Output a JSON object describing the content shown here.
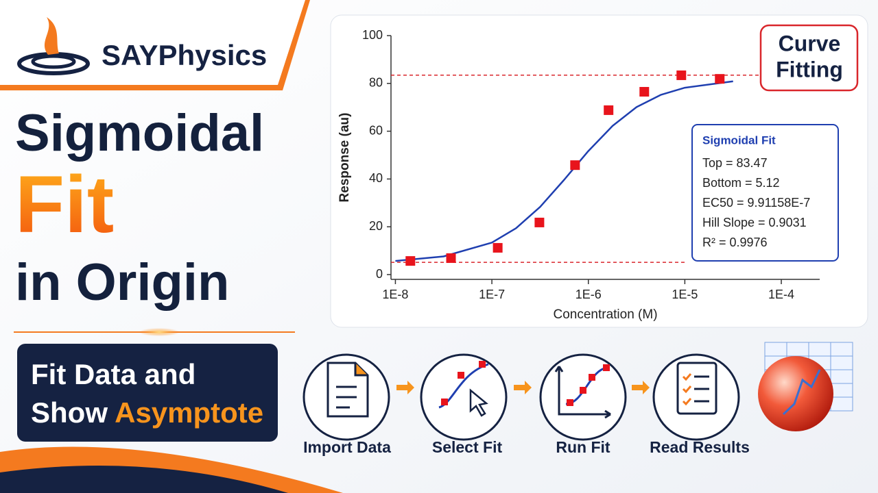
{
  "brand": "SAYPhysics",
  "headline": [
    "Sigmoidal",
    "Fit",
    "in Origin"
  ],
  "subtitle": {
    "line1": "Fit Data and",
    "line2": "Show ",
    "highlight": "Asymptote"
  },
  "badge": [
    "Curve",
    "Fitting"
  ],
  "steps": [
    "Import Data",
    "Select Fit",
    "Run Fit",
    "Read Results"
  ],
  "chart_data": {
    "type": "scatter",
    "x_label": "Concentration (M)",
    "y_label": "Response (au)",
    "log_x": true,
    "xlim": [
      9e-09,
      0.00025
    ],
    "ylim": [
      -2,
      100
    ],
    "xticks": [
      {
        "value": 1e-08,
        "label": "1E-8"
      },
      {
        "value": 1e-07,
        "label": "1E-7"
      },
      {
        "value": 1e-06,
        "label": "1E-6"
      },
      {
        "value": 1e-05,
        "label": "1E-5"
      },
      {
        "value": 0.0001,
        "label": "1E-4"
      }
    ],
    "yticks": [
      0,
      20,
      40,
      60,
      80,
      100
    ],
    "series": [
      {
        "name": "Data",
        "color": "#e8141c",
        "x": [
          1.43e-08,
          3.77e-08,
          1.15e-07,
          3.11e-07,
          7.28e-07,
          1.62e-06,
          3.8e-06,
          9.2e-06,
          2.3e-05
        ],
        "values": [
          5.7,
          6.9,
          11.2,
          21.8,
          45.8,
          68.8,
          76.5,
          83.4,
          81.9
        ]
      },
      {
        "name": "Sigmoidal Fit",
        "color": "#1f3fb0",
        "x": [
          1e-08,
          3.16e-08,
          1e-07,
          1.78e-07,
          3.16e-07,
          5.62e-07,
          1e-06,
          1.78e-06,
          3.16e-06,
          5.62e-06,
          1e-05,
          3.16e-05
        ],
        "values": [
          5.7,
          7.6,
          13.4,
          19.4,
          28.3,
          39.7,
          51.7,
          62.2,
          70.1,
          75.2,
          78.2,
          80.9
        ]
      }
    ],
    "asymptotes": [
      {
        "value": 83.47,
        "color": "#d9262b"
      },
      {
        "value": 5.12,
        "color": "#d9262b"
      }
    ],
    "fit_box": {
      "title": "Sigmoidal Fit",
      "lines": [
        "Top = 83.47",
        "Bottom = 5.12",
        "EC50 = 9.91158E-7",
        "Hill Slope = 0.9031",
        "R² = 0.9976"
      ]
    }
  }
}
